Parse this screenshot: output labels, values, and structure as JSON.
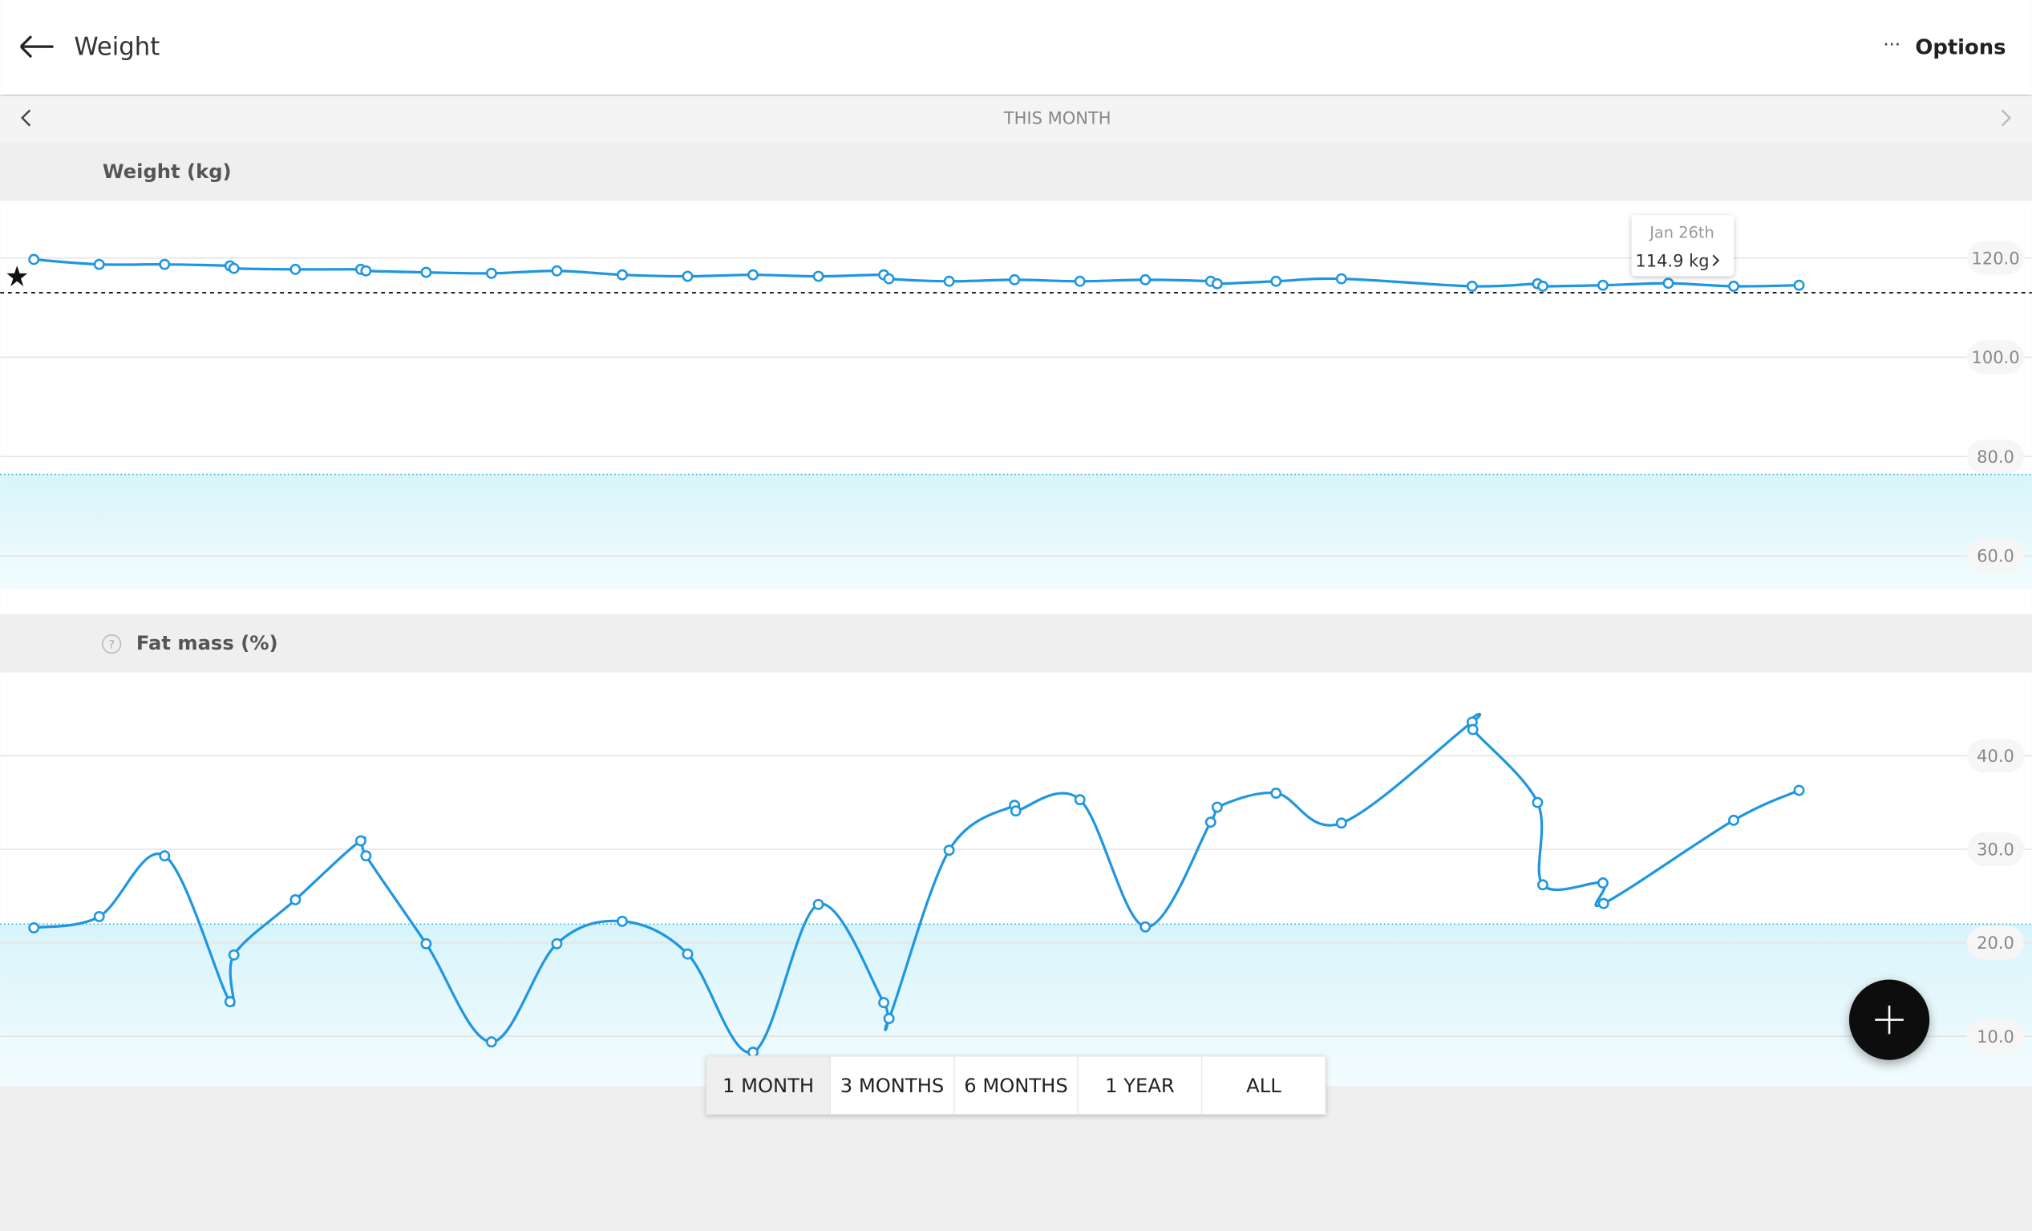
{
  "header": {
    "title": "Weight",
    "more": "···",
    "options": "Options"
  },
  "nav": {
    "period": "THIS MONTH"
  },
  "help_icon": "?",
  "chart_data": [
    {
      "type": "line",
      "title": "Weight (kg)",
      "x": [
        1,
        2,
        3,
        4,
        4.06,
        5,
        6,
        6.08,
        7,
        8,
        9,
        10,
        11,
        12,
        13,
        14,
        14.08,
        15,
        16,
        17,
        18,
        19,
        19.1,
        20,
        21,
        23,
        24,
        24.08,
        25,
        26,
        27,
        28
      ],
      "series": [
        {
          "color": "#1f96e0",
          "values": [
            119.7,
            118.7,
            118.7,
            118.4,
            117.9,
            117.7,
            117.7,
            117.4,
            117.1,
            116.9,
            117.4,
            116.6,
            116.3,
            116.6,
            116.3,
            116.6,
            115.8,
            115.3,
            115.6,
            115.3,
            115.6,
            115.3,
            114.8,
            115.3,
            115.8,
            114.3,
            114.8,
            114.3,
            114.5,
            114.9,
            114.3,
            114.5
          ]
        }
      ],
      "xlim": [
        0.485,
        31.56
      ],
      "ylim": [
        53.2,
        131.5
      ],
      "yticks": [
        {
          "value": 60,
          "label": "60.0"
        },
        {
          "value": 80,
          "label": "80.0"
        },
        {
          "value": 100,
          "label": "100.0"
        },
        {
          "value": 120,
          "label": "120.0"
        }
      ],
      "grid": true,
      "target": 113.0,
      "healthy_max": 76.4,
      "tooltip": {
        "title": "Jan 26th",
        "text": "114.9 kg"
      }
    },
    {
      "type": "line",
      "title": "Fat mass (%)",
      "x": [
        1,
        2,
        3,
        4,
        4.06,
        5,
        6,
        6.08,
        7,
        8,
        9,
        10,
        11,
        12,
        13,
        14,
        14.08,
        15,
        16,
        16.02,
        17,
        18,
        19,
        19.1,
        20,
        21,
        23,
        23.01,
        24,
        24.08,
        25,
        25.01,
        27,
        28
      ],
      "series": [
        {
          "color": "#1f96e0",
          "values": [
            21.6,
            22.8,
            29.3,
            13.7,
            18.7,
            24.6,
            30.9,
            29.3,
            19.9,
            9.4,
            19.9,
            22.3,
            18.8,
            8.3,
            24.1,
            13.6,
            11.9,
            29.9,
            34.7,
            34.1,
            35.3,
            21.7,
            32.9,
            34.5,
            36.0,
            32.8,
            43.6,
            42.8,
            35.0,
            26.2,
            26.4,
            24.2,
            33.1,
            36.3
          ]
        }
      ],
      "xlim": [
        0.485,
        31.56
      ],
      "ylim": [
        4.7,
        48.9
      ],
      "yticks": [
        {
          "value": 10,
          "label": "10.0"
        },
        {
          "value": 20,
          "label": "20.0"
        },
        {
          "value": 30,
          "label": "30.0"
        },
        {
          "value": 40,
          "label": "40.0"
        }
      ],
      "grid": true,
      "healthy_max": 22.0
    }
  ],
  "range_buttons": [
    "1 MONTH",
    "3 MONTHS",
    "6 MONTHS",
    "1 YEAR",
    "ALL"
  ],
  "selected_range": 0
}
